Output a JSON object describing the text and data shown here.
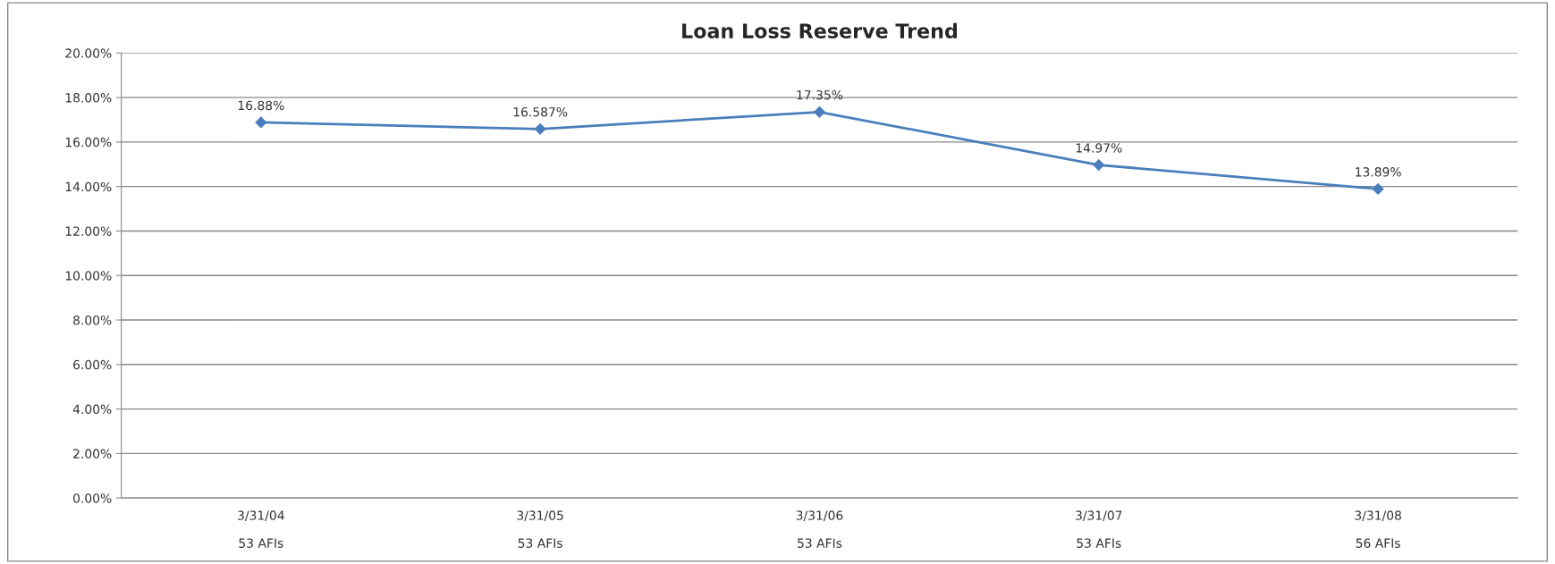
{
  "chart_data": {
    "type": "line",
    "title": "Loan Loss Reserve Trend",
    "categories": [
      "3/31/04\n\n53 AFIs",
      "3/31/05\n\n53 AFIs",
      "3/31/06\n\n53 AFIs",
      "3/31/07\n\n53 AFIs",
      "3/31/08\n\n56 AFIs"
    ],
    "series": [
      {
        "color": "#4a7ebb",
        "values": [
          16.88,
          16.587,
          17.35,
          14.97,
          13.89
        ],
        "value_labels": [
          "16.88%",
          "16.587%",
          "17.35%",
          "14.97%",
          "13.89%"
        ]
      }
    ],
    "ylim": [
      0,
      20
    ],
    "yticks": [
      {
        "value": 0,
        "label": "0.00%"
      },
      {
        "value": 2,
        "label": "2.00%"
      },
      {
        "value": 4,
        "label": "4.00%"
      },
      {
        "value": 6,
        "label": "6.00%"
      },
      {
        "value": 8,
        "label": "8.00%"
      },
      {
        "value": 10,
        "label": "10.00%"
      },
      {
        "value": 12,
        "label": "12.00%"
      },
      {
        "value": 14,
        "label": "14.00%"
      },
      {
        "value": 16,
        "label": "16.00%"
      },
      {
        "value": 18,
        "label": "18.00%"
      },
      {
        "value": 20,
        "label": "20.00%"
      }
    ],
    "grid": "y",
    "marker": "diamond",
    "line_style": "solid"
  }
}
